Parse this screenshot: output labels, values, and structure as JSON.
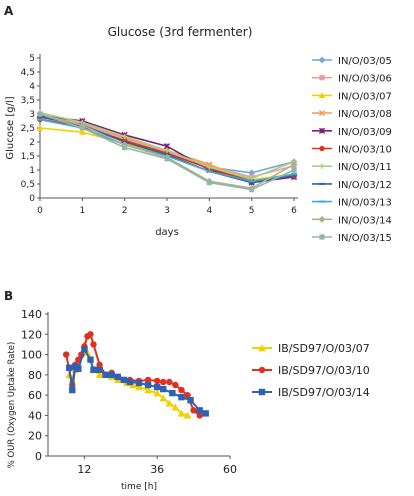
{
  "panels": [
    {
      "label": "A"
    },
    {
      "label": "B"
    }
  ],
  "chart_data": [
    {
      "type": "line",
      "title": "Glucose (3rd fermenter)",
      "xlabel": "days",
      "ylabel": "Glucose [g/l]",
      "xlim": [
        0,
        6
      ],
      "ylim": [
        0,
        5
      ],
      "x_ticks": [
        "0",
        "1",
        "2",
        "3",
        "4",
        "5",
        "6"
      ],
      "y_ticks": [
        "0",
        "0,5",
        "1",
        "1,5",
        "2",
        "2,5",
        "3",
        "3,5",
        "4",
        "4,5",
        "5"
      ],
      "grid": false,
      "legend_position": "right",
      "x": [
        0,
        1,
        2,
        3,
        4,
        5,
        6
      ],
      "series": [
        {
          "name": "IN/O/03/05",
          "color": "#6fa8dc",
          "marker": "diamond",
          "values": [
            2.8,
            2.6,
            2.1,
            1.6,
            1.1,
            0.9,
            1.3
          ]
        },
        {
          "name": "IN/O/03/06",
          "color": "#e6a0a0",
          "marker": "square",
          "values": [
            2.85,
            2.65,
            2.1,
            1.65,
            1.15,
            0.75,
            1.15
          ]
        },
        {
          "name": "IN/O/03/07",
          "color": "#f4d000",
          "marker": "triangle",
          "values": [
            2.5,
            2.35,
            1.95,
            1.55,
            1.1,
            0.65,
            0.85
          ]
        },
        {
          "name": "IN/O/03/08",
          "color": "#f0a060",
          "marker": "x",
          "values": [
            2.95,
            2.7,
            2.15,
            1.7,
            1.2,
            0.6,
            0.8
          ]
        },
        {
          "name": "IN/O/03/09",
          "color": "#7a1f7a",
          "marker": "star",
          "values": [
            2.95,
            2.75,
            2.25,
            1.85,
            1.0,
            0.55,
            0.75
          ]
        },
        {
          "name": "IN/O/03/10",
          "color": "#e03020",
          "marker": "circle",
          "values": [
            2.8,
            2.55,
            2.05,
            1.6,
            1.05,
            0.6,
            0.8
          ]
        },
        {
          "name": "IN/O/03/11",
          "color": "#a8d080",
          "marker": "plus",
          "values": [
            3.05,
            2.7,
            2.2,
            1.7,
            1.1,
            0.7,
            1.3
          ]
        },
        {
          "name": "IN/O/03/12",
          "color": "#3060a0",
          "marker": "dash",
          "values": [
            2.9,
            2.6,
            2.0,
            1.55,
            0.95,
            0.55,
            0.8
          ]
        },
        {
          "name": "IN/O/03/13",
          "color": "#40a8d8",
          "marker": "dash",
          "values": [
            2.8,
            2.5,
            1.9,
            1.5,
            0.95,
            0.6,
            0.85
          ]
        },
        {
          "name": "IN/O/03/14",
          "color": "#b0b090",
          "marker": "diamond",
          "values": [
            3.0,
            2.6,
            1.9,
            1.45,
            0.6,
            0.35,
            1.2
          ]
        },
        {
          "name": "IN/O/03/15",
          "color": "#90b8a8",
          "marker": "square",
          "values": [
            3.0,
            2.5,
            1.8,
            1.4,
            0.55,
            0.3,
            1.0
          ]
        }
      ]
    },
    {
      "type": "line",
      "title": "",
      "xlabel": "time [h]",
      "ylabel": "% OUR (Oxygen Uptake Rate)",
      "xlim": [
        0,
        60
      ],
      "ylim": [
        0,
        140
      ],
      "x_ticks": [
        "12",
        "36",
        "60"
      ],
      "y_ticks": [
        "0",
        "20",
        "40",
        "60",
        "80",
        "100",
        "120",
        "140"
      ],
      "grid": false,
      "legend_position": "right",
      "series": [
        {
          "name": "IB/SD97/O/03/07",
          "color": "#f4d000",
          "marker": "triangle",
          "x": [
            7,
            8,
            9,
            10,
            11,
            12,
            13,
            15,
            17,
            19,
            21,
            23,
            26,
            28,
            30,
            33,
            36,
            38,
            40,
            42,
            44,
            46
          ],
          "values": [
            80,
            75,
            85,
            92,
            100,
            110,
            102,
            85,
            80,
            80,
            78,
            75,
            72,
            70,
            68,
            65,
            62,
            57,
            52,
            48,
            42,
            40
          ]
        },
        {
          "name": "IB/SD97/O/03/10",
          "color": "#e03020",
          "marker": "circle",
          "x": [
            6,
            8,
            9,
            10,
            11,
            12,
            13,
            14,
            15,
            17,
            19,
            21,
            23,
            27,
            30,
            33,
            36,
            38,
            40,
            42,
            44,
            46,
            48,
            50
          ],
          "values": [
            100,
            70,
            90,
            95,
            100,
            108,
            118,
            120,
            110,
            90,
            80,
            82,
            78,
            75,
            74,
            75,
            74,
            73,
            73,
            70,
            65,
            60,
            45,
            40
          ]
        },
        {
          "name": "IB/SD97/O/03/14",
          "color": "#3060b0",
          "marker": "square",
          "x": [
            7,
            8,
            9,
            10,
            12,
            14,
            15,
            17,
            19,
            21,
            23,
            25,
            27,
            30,
            33,
            36,
            38,
            41,
            44,
            47,
            50,
            52
          ],
          "values": [
            87,
            65,
            88,
            86,
            105,
            95,
            85,
            85,
            80,
            80,
            78,
            75,
            73,
            72,
            70,
            68,
            66,
            62,
            58,
            55,
            45,
            42
          ]
        }
      ]
    }
  ]
}
